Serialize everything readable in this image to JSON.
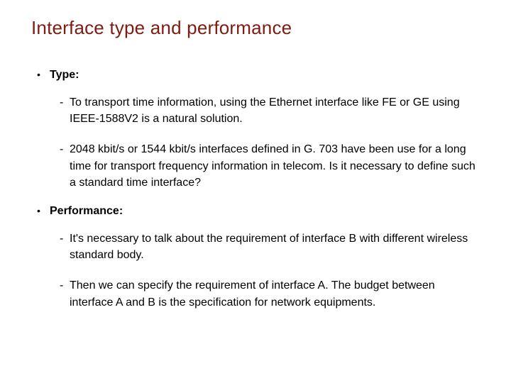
{
  "slide": {
    "title": "Interface type and performance",
    "title_color": "#7e1b12",
    "background_color": "#ffffff",
    "text_color": "#000000",
    "title_fontsize": 26,
    "body_fontsize": 16,
    "font_family": "Arial",
    "bullets": [
      {
        "label": "Type:",
        "sub": [
          "To transport time information, using the Ethernet interface like FE or GE using IEEE-1588V2 is a natural solution.",
          "2048 kbit/s or 1544 kbit/s interfaces defined in G. 703 have been use for a long time for transport frequency information in telecom. Is it necessary to define such a standard time interface?"
        ]
      },
      {
        "label": "Performance:",
        "sub": [
          "It's necessary to talk about the requirement of interface B with different wireless standard body.",
          "Then we can specify the requirement of interface A. The budget between interface A and B is the specification for network equipments."
        ]
      }
    ]
  }
}
